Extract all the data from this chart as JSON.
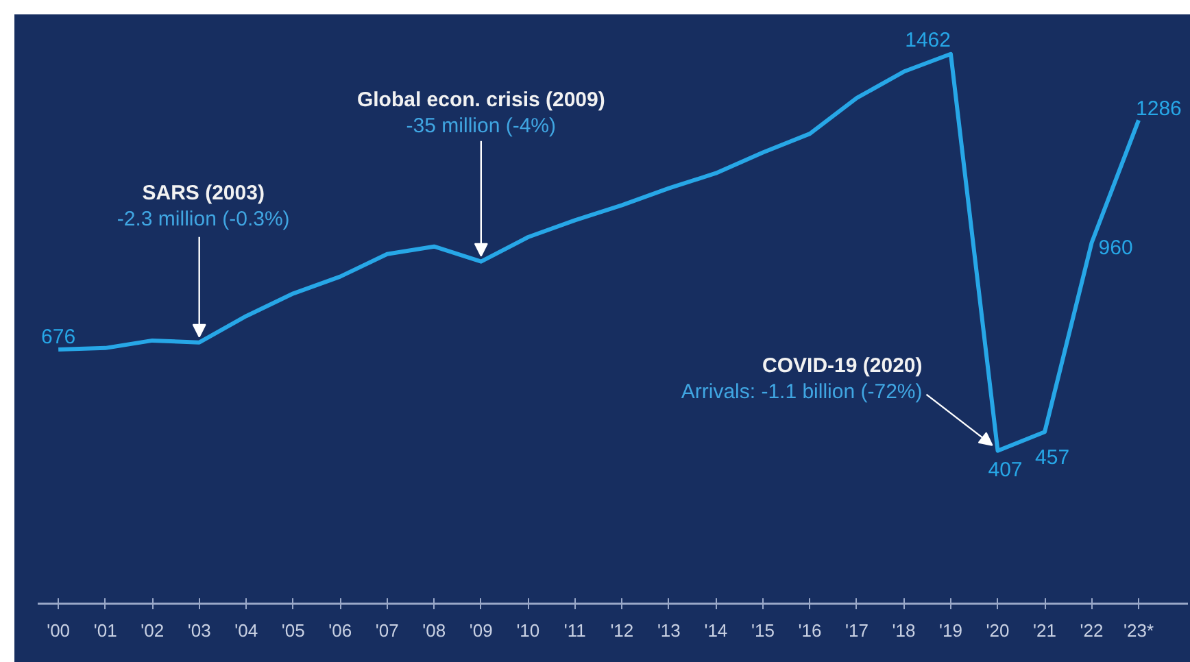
{
  "chart_data": {
    "type": "line",
    "categories": [
      "'00",
      "'01",
      "'02",
      "'03",
      "'04",
      "'05",
      "'06",
      "'07",
      "'08",
      "'09",
      "'10",
      "'11",
      "'12",
      "'13",
      "'14",
      "'15",
      "'16",
      "'17",
      "'18",
      "'19",
      "'20",
      "'21",
      "'22",
      "'23*"
    ],
    "series": [
      {
        "color": "#27a7e7",
        "values": [
          676,
          680,
          700,
          695,
          765,
          825,
          870,
          930,
          950,
          910,
          975,
          1020,
          1060,
          1105,
          1145,
          1200,
          1250,
          1345,
          1415,
          1462,
          407,
          457,
          960,
          1286
        ],
        "value_labels": [
          "676",
          null,
          null,
          null,
          null,
          null,
          null,
          null,
          null,
          null,
          null,
          null,
          null,
          null,
          null,
          null,
          null,
          null,
          null,
          "1462",
          "407",
          "457",
          "960",
          "1286"
        ]
      }
    ],
    "ylim": [
      0,
      1560
    ],
    "tick_labels": "x",
    "grid": false,
    "line_style": "solid",
    "annotations": [
      {
        "text": "SARS (2003)\n-2.3 million (-0.3%)",
        "x": "'03",
        "y": 695
      },
      {
        "text": "Global econ. crisis (2009)\n-35 million (-4%)",
        "x": "'09",
        "y": 910
      },
      {
        "text": "COVID-19 (2020)\nArrivals: -1.1 billion (-72%)",
        "x": "'20",
        "y": 407
      }
    ]
  }
}
